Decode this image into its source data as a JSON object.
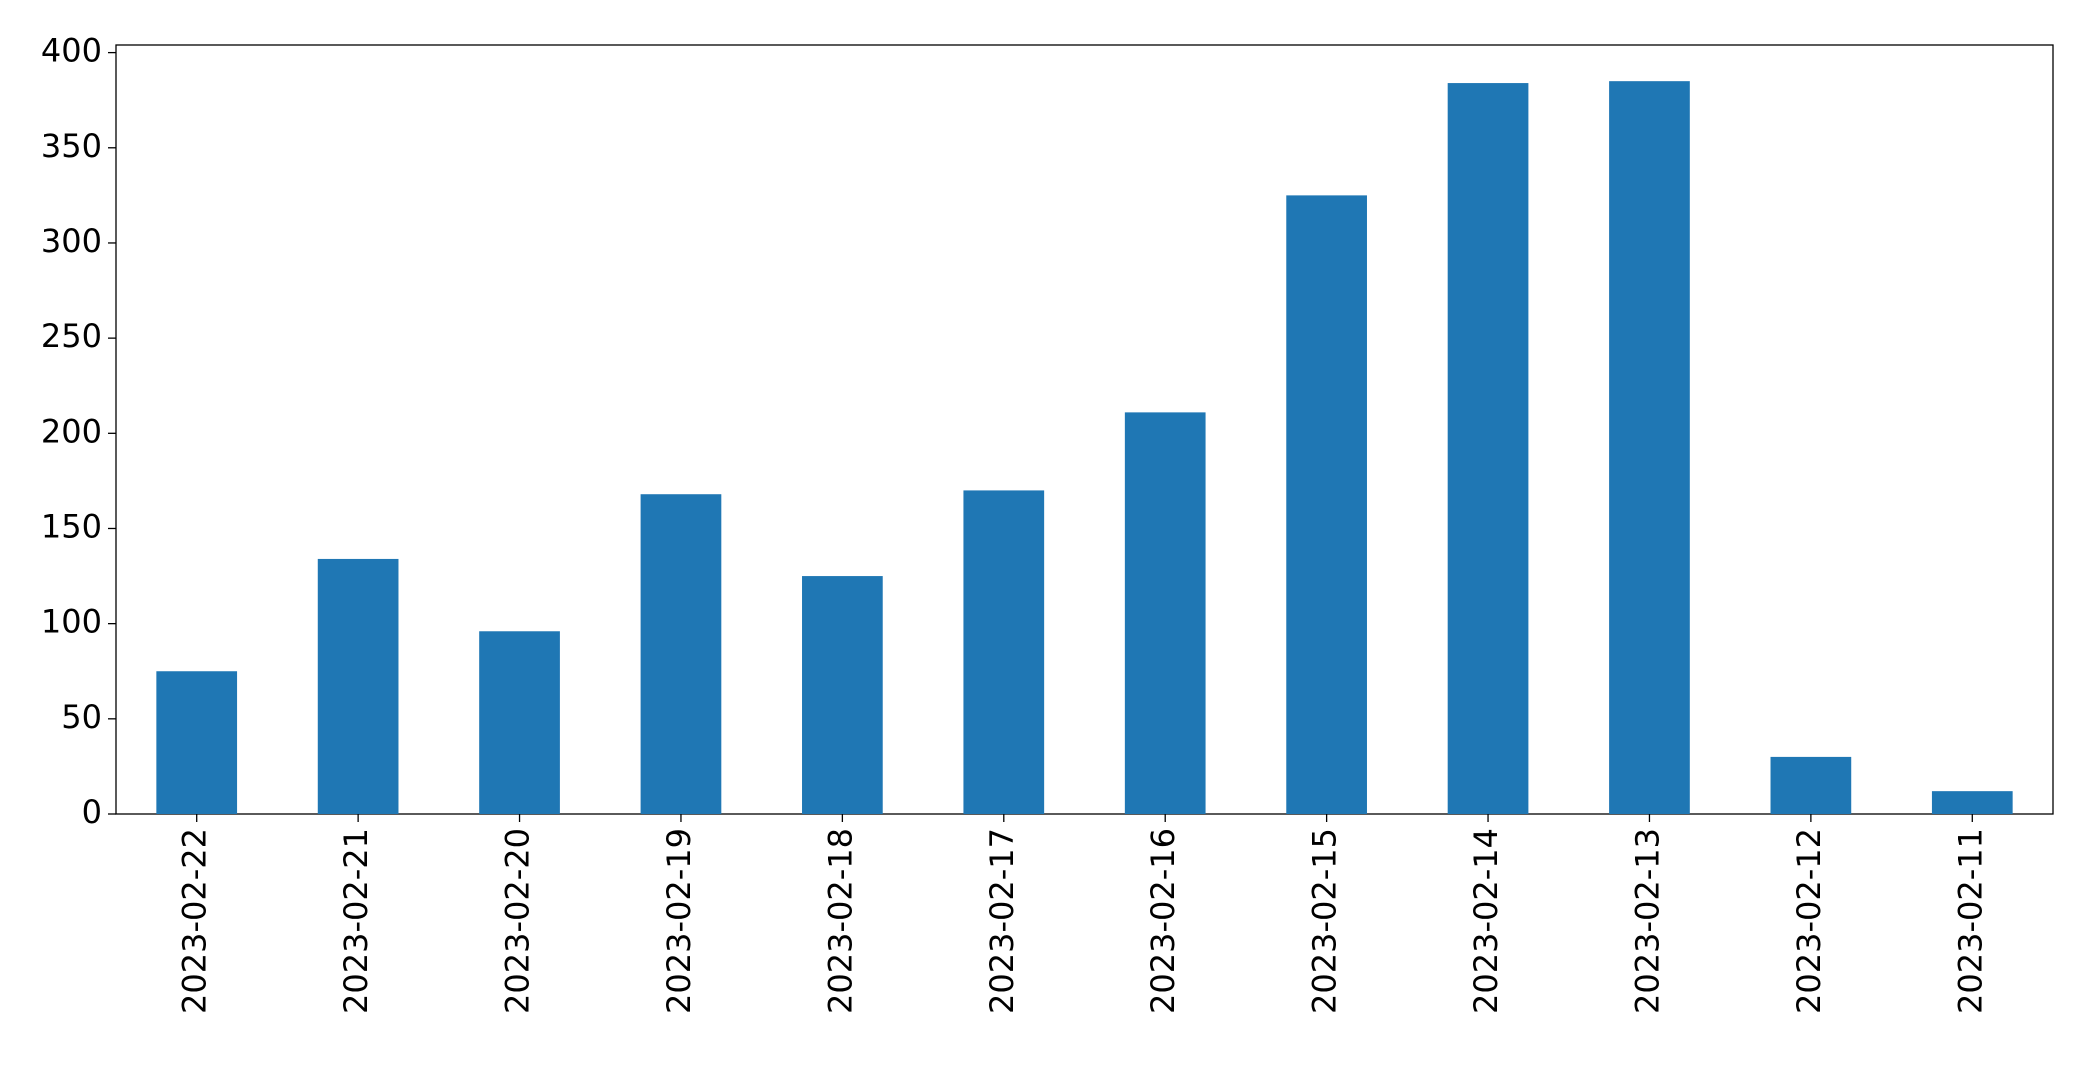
{
  "chart_data": {
    "type": "bar",
    "categories": [
      "2023-02-22",
      "2023-02-21",
      "2023-02-20",
      "2023-02-19",
      "2023-02-18",
      "2023-02-17",
      "2023-02-16",
      "2023-02-15",
      "2023-02-14",
      "2023-02-13",
      "2023-02-12",
      "2023-02-11"
    ],
    "values": [
      75,
      134,
      96,
      168,
      125,
      170,
      211,
      325,
      384,
      385,
      30,
      12
    ],
    "color": "#1f77b4",
    "ylim": [
      0,
      404
    ],
    "yticks": [
      0,
      50,
      100,
      150,
      200,
      250,
      300,
      350,
      400
    ],
    "grid": false
  }
}
